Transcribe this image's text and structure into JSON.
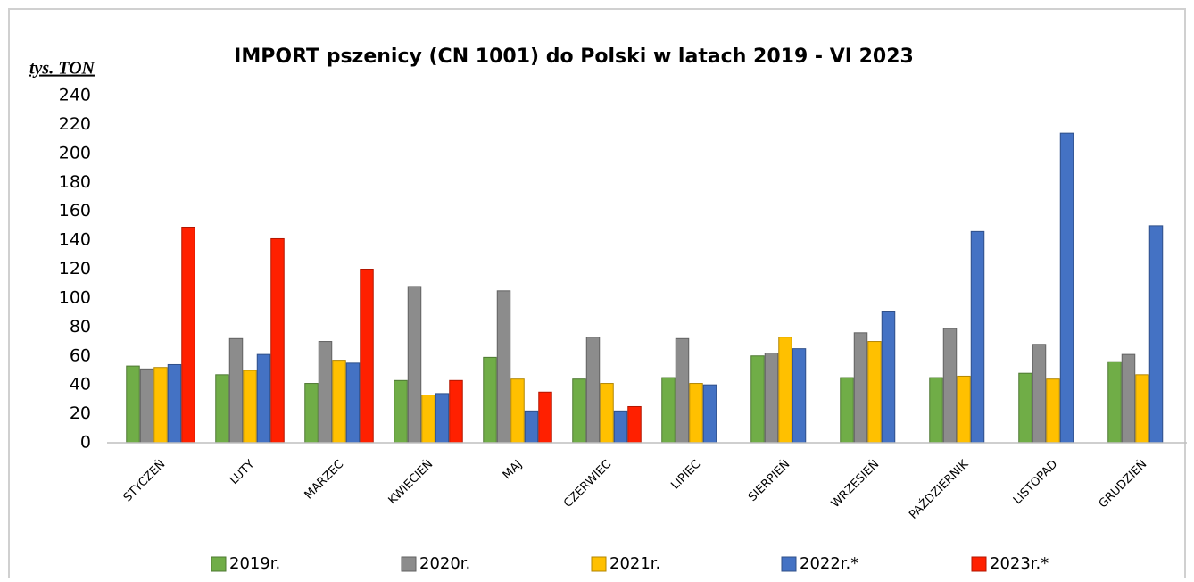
{
  "chart_data": {
    "type": "bar",
    "title": "IMPORT pszenicy (CN 1001) do Polski w latach 2019 - VI 2023",
    "y_label": "tys. TON",
    "categories": [
      "STYCZEŃ",
      "LUTY",
      "MARZEC",
      "KWIECIEŃ",
      "MAJ",
      "CZERWIEC",
      "LIPIEC",
      "SIERPIEŃ",
      "WRZESIEŃ",
      "PAŹDZIERNIK",
      "LISTOPAD",
      "GRUDZIEŃ"
    ],
    "series": [
      {
        "name": "2019r.",
        "color": "#70ad47",
        "values": [
          53,
          47,
          41,
          43,
          59,
          44,
          45,
          60,
          45,
          45,
          48,
          56
        ]
      },
      {
        "name": "2020r.",
        "color": "#8c8c8c",
        "values": [
          51,
          72,
          70,
          108,
          105,
          73,
          72,
          62,
          76,
          79,
          68,
          61
        ]
      },
      {
        "name": "2021r.",
        "color": "#ffc000",
        "values": [
          52,
          50,
          57,
          33,
          44,
          41,
          41,
          73,
          70,
          46,
          44,
          47
        ]
      },
      {
        "name": "2022r.*",
        "color": "#4472c4",
        "values": [
          54,
          61,
          55,
          34,
          22,
          22,
          40,
          65,
          91,
          146,
          214,
          150
        ]
      },
      {
        "name": "2023r.*",
        "color": "#ff2000",
        "values": [
          149,
          141,
          120,
          43,
          35,
          25,
          null,
          null,
          null,
          null,
          null,
          null
        ]
      }
    ],
    "ylim": [
      0,
      240
    ],
    "yticks": [
      0,
      20,
      40,
      60,
      80,
      100,
      120,
      140,
      160,
      180,
      200,
      220,
      240
    ],
    "grid": false,
    "legend": "bottom"
  }
}
